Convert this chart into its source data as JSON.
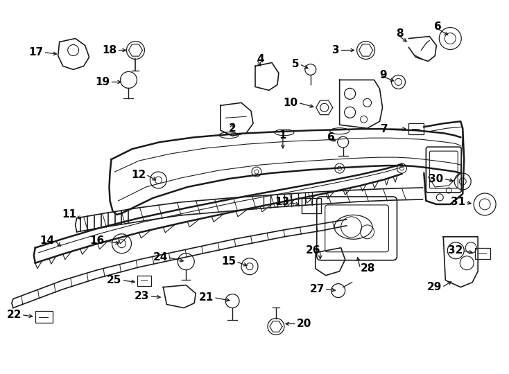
{
  "bg_color": "#ffffff",
  "line_color": "#1a1a1a",
  "label_color": "#000000",
  "fig_width": 7.34,
  "fig_height": 5.4,
  "dpi": 100
}
